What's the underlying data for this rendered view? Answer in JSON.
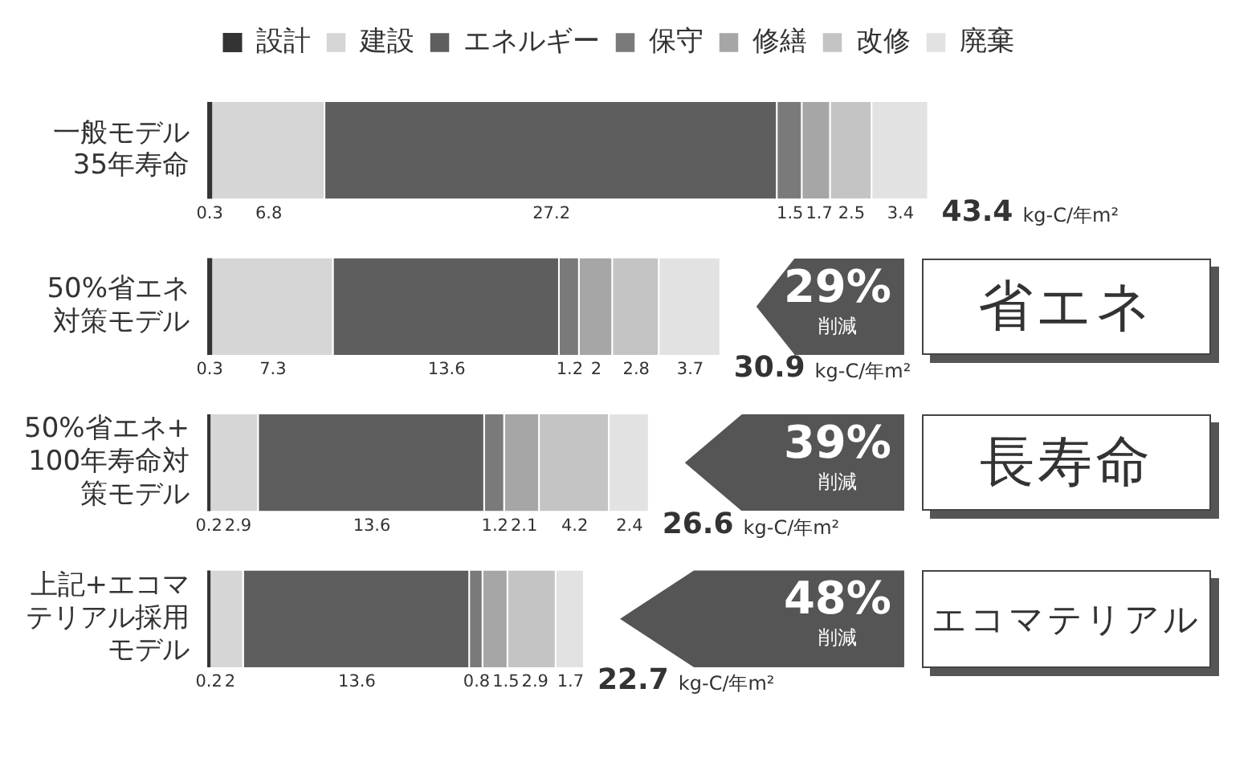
{
  "chart_data": {
    "type": "bar",
    "orientation": "horizontal",
    "stacked": true,
    "data_labels": true,
    "legend": "top",
    "categories": [
      "一般モデル35年寿命",
      "50%省エネ対策モデル",
      "50%省エネ+100年寿命対策モデル",
      "上記+エコマテリアル採用モデル"
    ],
    "series": [
      {
        "name": "設計",
        "color": "#333333",
        "values": [
          0.3,
          0.3,
          0.2,
          0.2
        ]
      },
      {
        "name": "建設",
        "color": "#d6d6d6",
        "values": [
          6.8,
          7.3,
          2.9,
          2.0
        ]
      },
      {
        "name": "エネルギー",
        "color": "#5e5e5e",
        "values": [
          27.2,
          13.6,
          13.6,
          13.6
        ]
      },
      {
        "name": "保守",
        "color": "#7a7a7a",
        "values": [
          1.5,
          1.2,
          1.2,
          0.8
        ]
      },
      {
        "name": "修繕",
        "color": "#a6a6a6",
        "values": [
          1.7,
          2.0,
          2.1,
          1.5
        ]
      },
      {
        "name": "改修",
        "color": "#c4c4c4",
        "values": [
          2.5,
          2.8,
          4.2,
          2.9
        ]
      },
      {
        "name": "廃棄",
        "color": "#e2e2e2",
        "values": [
          3.4,
          3.7,
          2.4,
          1.7
        ]
      }
    ],
    "totals": [
      "43.4 kg-C/年m²",
      "30.9 kg-C/年m²",
      "26.6 kg-C/年m²",
      "22.7 kg-C/年m²"
    ],
    "annotations": [
      null,
      null,
      null,
      "29%",
      "削減",
      "省エネ",
      "39%",
      "削減",
      "長寿命",
      "48%",
      "削減",
      "エコマテリアル"
    ]
  }
}
